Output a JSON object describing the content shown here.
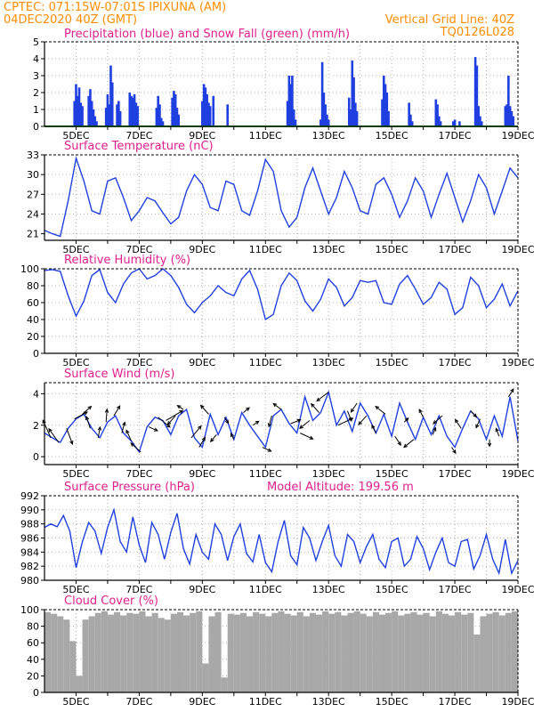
{
  "header": {
    "line1_left": "CPTEC:  071:15W-07:01S  IPIXUNA (AM)",
    "line2_left": "04DEC2020 40Z (GMT)",
    "line2_right": "Vertical Grid Line: 40Z",
    "line3_right": "TQ0126L028"
  },
  "colors": {
    "precip": "#1f3fe0",
    "snow": "#22a022",
    "line": "#2040e0",
    "cloud": "#a8a8a8",
    "header": "#ff8c00",
    "title": "#e0208c"
  },
  "x_axis": {
    "labels": [
      "5DEC",
      "7DEC",
      "9DEC",
      "11DEC",
      "13DEC",
      "15DEC",
      "17DEC",
      "19DEC"
    ],
    "day_start": 4.0,
    "day_end": 19.0,
    "label_days": [
      5,
      7,
      9,
      11,
      13,
      15,
      17,
      19
    ]
  },
  "chart_data": [
    {
      "type": "bar",
      "title": "Precipitation (blue) and Snow Fall (green) (mm/h)",
      "ylim": [
        0,
        5
      ],
      "yticks": [
        "0",
        "1",
        "2",
        "3",
        "4",
        "5"
      ],
      "series": [
        {
          "name": "Precipitation",
          "x_day": [
            4.95,
            5.0,
            5.05,
            5.1,
            5.15,
            5.2,
            5.4,
            5.45,
            5.5,
            5.55,
            5.6,
            5.65,
            5.95,
            6.0,
            6.05,
            6.1,
            6.15,
            6.3,
            6.35,
            6.4,
            6.7,
            6.75,
            6.8,
            6.85,
            6.9,
            6.95,
            7.55,
            7.6,
            7.65,
            7.7,
            7.75,
            8.05,
            8.1,
            8.15,
            8.2,
            8.25,
            9.0,
            9.05,
            9.1,
            9.15,
            9.2,
            9.25,
            9.35,
            9.8,
            11.7,
            11.75,
            11.8,
            11.85,
            11.9,
            11.95,
            12.75,
            12.8,
            12.85,
            12.9,
            12.95,
            13.0,
            13.65,
            13.7,
            13.75,
            13.8,
            13.85,
            13.9,
            14.7,
            14.75,
            14.8,
            14.85,
            14.9,
            15.55,
            15.6,
            15.65,
            16.4,
            16.45,
            16.5,
            16.55,
            16.95,
            17.0,
            17.15,
            17.65,
            17.7,
            17.75,
            17.8,
            17.85,
            18.6,
            18.65,
            18.7,
            18.75,
            18.8,
            18.85
          ],
          "values": [
            1.5,
            2.5,
            1.8,
            2.3,
            1.4,
            1.2,
            1.8,
            2.2,
            1.5,
            1.0,
            0.6,
            0.3,
            1.1,
            1.9,
            1.3,
            3.6,
            2.6,
            1.3,
            1.5,
            0.9,
            2.0,
            1.8,
            1.7,
            1.9,
            1.4,
            1.2,
            1.1,
            1.8,
            1.3,
            0.5,
            0.3,
            1.7,
            2.1,
            1.9,
            1.1,
            0.7,
            1.5,
            2.5,
            2.3,
            1.9,
            1.4,
            1.2,
            1.8,
            1.3,
            1.5,
            3.0,
            2.5,
            3.0,
            1.0,
            0.4,
            0.4,
            3.8,
            2.0,
            1.3,
            0.7,
            0.4,
            1.7,
            1.0,
            3.9,
            2.9,
            1.4,
            0.9,
            1.6,
            3.0,
            2.5,
            2.0,
            0.9,
            1.4,
            0.7,
            0.3,
            1.6,
            1.3,
            0.6,
            0.3,
            0.3,
            0.4,
            0.3,
            4.1,
            3.6,
            1.2,
            0.6,
            0.3,
            1.2,
            1.3,
            3.0,
            1.2,
            0.9,
            0.6
          ]
        },
        {
          "name": "Snow Fall",
          "value": 0
        }
      ]
    },
    {
      "type": "line",
      "title": "Surface Temperature (nC)",
      "ylim": [
        20,
        33
      ],
      "yticks": [
        "21",
        "24",
        "27",
        "30",
        "33"
      ],
      "x_day": [
        4.0,
        4.25,
        4.5,
        4.75,
        5.0,
        5.25,
        5.5,
        5.75,
        6.0,
        6.25,
        6.5,
        6.75,
        7.0,
        7.25,
        7.5,
        7.75,
        8.0,
        8.25,
        8.5,
        8.75,
        9.0,
        9.25,
        9.5,
        9.75,
        10.0,
        10.25,
        10.5,
        10.75,
        11.0,
        11.25,
        11.5,
        11.75,
        12.0,
        12.25,
        12.5,
        12.75,
        13.0,
        13.25,
        13.5,
        13.75,
        14.0,
        14.25,
        14.5,
        14.75,
        15.0,
        15.25,
        15.5,
        15.75,
        16.0,
        16.25,
        16.5,
        16.75,
        17.0,
        17.25,
        17.5,
        17.75,
        18.0,
        18.25,
        18.5,
        18.75,
        19.0
      ],
      "values": [
        21.5,
        21.0,
        20.6,
        26.0,
        32.5,
        29.0,
        24.5,
        24.0,
        29.0,
        29.5,
        26.5,
        23.0,
        24.5,
        26.5,
        26.0,
        24.2,
        22.5,
        23.5,
        27.5,
        30.0,
        28.5,
        25.0,
        24.5,
        29.0,
        28.5,
        24.5,
        23.8,
        27.5,
        32.3,
        30.5,
        24.5,
        22.0,
        23.5,
        28.0,
        31.0,
        27.5,
        24.0,
        26.5,
        30.5,
        28.0,
        24.5,
        24.0,
        28.5,
        29.5,
        27.0,
        23.5,
        26.0,
        29.5,
        27.5,
        23.5,
        27.0,
        30.2,
        26.5,
        22.8,
        26.0,
        30.0,
        28.0,
        24.0,
        27.5,
        31.0,
        29.5
      ]
    },
    {
      "type": "line",
      "title": "Relative Humidity (%)",
      "ylim": [
        0,
        100
      ],
      "yticks": [
        "0",
        "20",
        "40",
        "60",
        "80",
        "100"
      ],
      "x_day": [
        4.0,
        4.25,
        4.5,
        4.75,
        5.0,
        5.25,
        5.5,
        5.75,
        6.0,
        6.25,
        6.5,
        6.75,
        7.0,
        7.25,
        7.5,
        7.75,
        8.0,
        8.25,
        8.5,
        8.75,
        9.0,
        9.25,
        9.5,
        9.75,
        10.0,
        10.25,
        10.5,
        10.75,
        11.0,
        11.25,
        11.5,
        11.75,
        12.0,
        12.25,
        12.5,
        12.75,
        13.0,
        13.25,
        13.5,
        13.75,
        14.0,
        14.25,
        14.5,
        14.75,
        15.0,
        15.25,
        15.5,
        15.75,
        16.0,
        16.25,
        16.5,
        16.75,
        17.0,
        17.25,
        17.5,
        17.75,
        18.0,
        18.25,
        18.5,
        18.75,
        19.0
      ],
      "values": [
        98,
        99,
        97,
        68,
        44,
        62,
        92,
        99,
        72,
        60,
        82,
        95,
        100,
        88,
        92,
        100,
        92,
        78,
        58,
        48,
        60,
        68,
        80,
        72,
        68,
        88,
        98,
        76,
        40,
        46,
        80,
        95,
        86,
        62,
        50,
        64,
        88,
        78,
        56,
        66,
        86,
        84,
        86,
        60,
        58,
        82,
        92,
        76,
        58,
        66,
        84,
        76,
        46,
        54,
        90,
        80,
        54,
        64,
        82,
        56,
        74
      ]
    },
    {
      "type": "line",
      "title": "Surface Wind (m/s)",
      "ylim": [
        -0.5,
        4.7
      ],
      "yticks": [
        "0",
        "2",
        "4"
      ],
      "x_day": [
        4.0,
        4.25,
        4.5,
        4.75,
        5.0,
        5.25,
        5.5,
        5.75,
        6.0,
        6.25,
        6.5,
        6.75,
        7.0,
        7.25,
        7.5,
        7.75,
        8.0,
        8.25,
        8.5,
        8.75,
        9.0,
        9.25,
        9.5,
        9.75,
        10.0,
        10.25,
        10.5,
        10.75,
        11.0,
        11.25,
        11.5,
        11.75,
        12.0,
        12.25,
        12.5,
        12.75,
        13.0,
        13.25,
        13.5,
        13.75,
        14.0,
        14.25,
        14.5,
        14.75,
        15.0,
        15.25,
        15.5,
        15.75,
        16.0,
        16.25,
        16.5,
        16.75,
        17.0,
        17.25,
        17.5,
        17.75,
        18.0,
        18.25,
        18.5,
        18.75,
        19.0
      ],
      "values": [
        1.5,
        1.2,
        0.9,
        1.8,
        2.4,
        2.7,
        1.8,
        1.2,
        2.2,
        2.6,
        1.5,
        1.0,
        0.3,
        1.9,
        2.5,
        2.3,
        1.4,
        2.6,
        3.0,
        1.2,
        0.6,
        2.7,
        1.4,
        2.5,
        1.1,
        2.8,
        2.0,
        1.3,
        0.6,
        2.6,
        3.0,
        2.1,
        1.5,
        3.8,
        2.3,
        2.8,
        4.1,
        2.0,
        2.9,
        1.6,
        3.4,
        2.6,
        1.5,
        2.7,
        1.3,
        3.4,
        2.2,
        1.1,
        2.5,
        1.4,
        2.6,
        1.3,
        0.6,
        1.8,
        2.9,
        2.4,
        1.1,
        2.6,
        1.3,
        3.8,
        1.0
      ],
      "vectors": {
        "x_day": [
          4.2,
          4.45,
          4.7,
          4.95,
          5.2,
          5.45,
          5.7,
          5.95,
          6.2,
          6.45,
          6.75,
          7.05,
          7.3,
          7.6,
          7.85,
          8.15,
          8.4,
          8.65,
          8.9,
          9.2,
          9.45,
          9.7,
          10.0,
          10.3,
          10.6,
          10.9,
          11.2,
          11.5,
          11.8,
          12.1,
          12.4,
          12.7,
          13.0,
          13.3,
          13.6,
          13.9,
          14.2,
          14.5,
          14.8,
          15.1,
          15.4,
          15.7,
          16.0,
          16.3,
          16.6,
          16.9,
          17.2,
          17.5,
          17.8,
          18.1,
          18.4,
          18.7
        ],
        "u": [
          -0.8,
          -1.0,
          0.6,
          1.3,
          0.9,
          -0.4,
          0.2,
          0.1,
          0.6,
          0.3,
          -0.5,
          -1.0,
          0.9,
          1.2,
          1.7,
          -0.8,
          -0.6,
          1.0,
          0.6,
          -0.8,
          -0.6,
          0.4,
          -0.3,
          0.6,
          0.6,
          0.9,
          -0.3,
          -0.8,
          1.0,
          1.3,
          -1.0,
          -0.8,
          -1.2,
          1.5,
          0.4,
          -0.6,
          -0.8,
          -0.4,
          -1.0,
          0.6,
          0.4,
          -1.0,
          -0.4,
          0.3,
          -0.9,
          0.4,
          -0.6,
          0.6,
          -0.4,
          0.0,
          -0.3,
          0.5
        ],
        "v": [
          1.8,
          1.4,
          -1.6,
          0.7,
          0.8,
          1.2,
          1.1,
          1.3,
          1.0,
          1.1,
          1.1,
          0.9,
          -0.4,
          -1.0,
          1.0,
          -0.9,
          0.4,
          1.2,
          1.0,
          0.9,
          -0.7,
          -0.6,
          0.6,
          0.5,
          0.4,
          -0.4,
          -1.1,
          0.6,
          0.4,
          -0.6,
          -0.8,
          0.9,
          -0.9,
          0.7,
          -1.0,
          -0.9,
          -0.9,
          0.8,
          0.8,
          -0.9,
          0.4,
          -0.8,
          0.8,
          0.7,
          -0.8,
          -0.6,
          0.9,
          -0.6,
          -0.9,
          -0.7,
          0.8,
          0.8
        ]
      }
    },
    {
      "type": "line",
      "title": "Surface Pressure (hPa)",
      "annotation": "Model Altitude: 199.56 m",
      "ylim": [
        980,
        992
      ],
      "yticks": [
        "980",
        "982",
        "984",
        "986",
        "988",
        "990",
        "992"
      ],
      "x_day": [
        4.0,
        4.2,
        4.4,
        4.6,
        4.8,
        5.0,
        5.2,
        5.4,
        5.6,
        5.8,
        6.0,
        6.2,
        6.4,
        6.6,
        6.8,
        7.0,
        7.2,
        7.4,
        7.6,
        7.8,
        8.0,
        8.2,
        8.4,
        8.6,
        8.8,
        9.0,
        9.2,
        9.4,
        9.6,
        9.8,
        10.0,
        10.2,
        10.4,
        10.6,
        10.8,
        11.0,
        11.2,
        11.4,
        11.6,
        11.8,
        12.0,
        12.2,
        12.4,
        12.6,
        12.8,
        13.0,
        13.2,
        13.4,
        13.6,
        13.8,
        14.0,
        14.2,
        14.4,
        14.6,
        14.8,
        15.0,
        15.2,
        15.4,
        15.6,
        15.8,
        16.0,
        16.2,
        16.4,
        16.6,
        16.8,
        17.0,
        17.2,
        17.4,
        17.6,
        17.8,
        18.0,
        18.2,
        18.4,
        18.6,
        18.8,
        19.0
      ],
      "values": [
        987.5,
        988.0,
        987.6,
        989.2,
        987.0,
        981.8,
        985.5,
        988.2,
        987.0,
        983.8,
        987.5,
        990.0,
        985.5,
        984.0,
        989.0,
        985.0,
        982.5,
        988.2,
        986.5,
        983.0,
        986.8,
        989.5,
        984.5,
        982.3,
        986.5,
        984.0,
        983.0,
        988.0,
        986.5,
        982.8,
        986.2,
        988.0,
        983.8,
        982.6,
        986.5,
        982.5,
        981.2,
        985.5,
        988.5,
        983.5,
        982.2,
        987.5,
        986.0,
        982.8,
        985.5,
        987.8,
        983.5,
        982.0,
        986.5,
        985.5,
        982.5,
        984.8,
        986.5,
        983.0,
        981.8,
        985.5,
        986.0,
        982.0,
        983.0,
        986.2,
        984.5,
        981.5,
        984.0,
        986.0,
        982.5,
        982.0,
        985.5,
        985.8,
        981.6,
        983.5,
        986.5,
        983.0,
        981.0,
        985.8,
        981.0,
        982.8
      ]
    },
    {
      "type": "area",
      "title": "Cloud Cover (%)",
      "ylim": [
        0,
        100
      ],
      "yticks": [
        "0",
        "20",
        "40",
        "60",
        "80",
        "100"
      ],
      "x_day": [
        4.0,
        4.2,
        4.4,
        4.6,
        4.8,
        5.0,
        5.2,
        5.4,
        5.6,
        5.8,
        6.0,
        6.2,
        6.4,
        6.6,
        6.8,
        7.0,
        7.2,
        7.4,
        7.6,
        7.8,
        8.0,
        8.2,
        8.4,
        8.6,
        8.8,
        9.0,
        9.2,
        9.4,
        9.6,
        9.8,
        10.0,
        10.2,
        10.4,
        10.6,
        10.8,
        11.0,
        11.2,
        11.4,
        11.6,
        11.8,
        12.0,
        12.2,
        12.4,
        12.6,
        12.8,
        13.0,
        13.2,
        13.4,
        13.6,
        13.8,
        14.0,
        14.2,
        14.4,
        14.6,
        14.8,
        15.0,
        15.2,
        15.4,
        15.6,
        15.8,
        16.0,
        16.2,
        16.4,
        16.6,
        16.8,
        17.0,
        17.2,
        17.4,
        17.6,
        17.8,
        18.0,
        18.2,
        18.4,
        18.6,
        18.8,
        19.0
      ],
      "values": [
        97,
        95,
        92,
        88,
        62,
        20,
        88,
        92,
        96,
        98,
        94,
        97,
        93,
        96,
        95,
        98,
        92,
        96,
        90,
        88,
        95,
        97,
        93,
        96,
        98,
        35,
        92,
        97,
        18,
        95,
        94,
        96,
        92,
        97,
        95,
        92,
        96,
        98,
        95,
        93,
        97,
        92,
        96,
        94,
        98,
        95,
        97,
        93,
        96,
        98,
        95,
        92,
        97,
        94,
        96,
        98,
        93,
        95,
        97,
        94,
        96,
        92,
        98,
        95,
        93,
        97,
        94,
        96,
        70,
        92,
        95,
        97,
        93,
        96,
        98,
        95
      ]
    }
  ]
}
